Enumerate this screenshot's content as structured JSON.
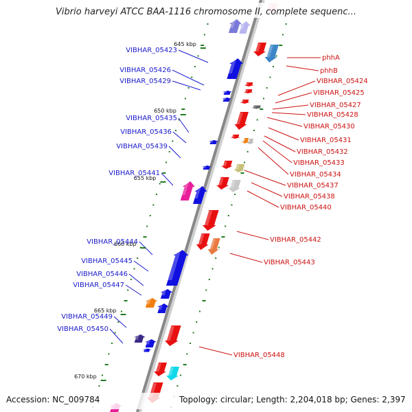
{
  "title": "Vibrio harveyi ATCC BAA-1116 chromosome II, complete sequenc...",
  "footer": {
    "accession": "Accession: NC_009784",
    "topology": "Topology: circular; Length: 2,204,018 bp; Genes: 2,397"
  },
  "colors": {
    "backbone": "#888888",
    "left_genes": "#1010e0",
    "right_genes": "#e81010",
    "left_label": "#1a1acc",
    "right_label": "#cc1111",
    "tick": "#1f7a1f"
  },
  "scale_labels": [
    "645 kbp",
    "650 kbp",
    "655 kbp",
    "660 kbp",
    "665 kbp",
    "670 kbp"
  ],
  "left_labels": [
    "VIBHAR_05423",
    "VIBHAR_05426",
    "VIBHAR_05429",
    "VIBHAR_05435",
    "VIBHAR_05436",
    "VIBHAR_05439",
    "VIBHAR_05441",
    "VIBHAR_05444",
    "VIBHAR_05445",
    "VIBHAR_05446",
    "VIBHAR_05447",
    "VIBHAR_05449",
    "VIBHAR_05450"
  ],
  "right_labels": [
    "phhA",
    "phhB",
    "VIBHAR_05424",
    "VIBHAR_05425",
    "VIBHAR_05427",
    "VIBHAR_05428",
    "VIBHAR_05430",
    "VIBHAR_05431",
    "VIBHAR_05432",
    "VIBHAR_05433",
    "VIBHAR_05434",
    "VIBHAR_05437",
    "VIBHAR_05438",
    "VIBHAR_05440",
    "VIBHAR_05442",
    "VIBHAR_05443",
    "VIBHAR_05448"
  ]
}
